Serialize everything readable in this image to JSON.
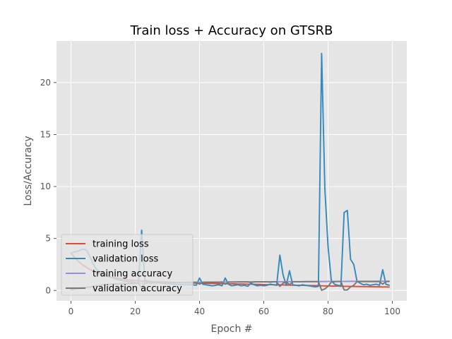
{
  "chart_data": {
    "type": "line",
    "title": "Train loss + Accuracy on GTSRB",
    "xlabel": "Epoch #",
    "ylabel": "Loss/Accuracy",
    "xlim": [
      -4.5,
      104.5
    ],
    "ylim": [
      -1.0,
      24.0
    ],
    "xticks": [
      0,
      20,
      40,
      60,
      80,
      100
    ],
    "yticks": [
      0,
      5,
      10,
      15,
      20
    ],
    "grid": true,
    "legend_position": "lower-left",
    "x": [
      0,
      1,
      2,
      3,
      4,
      5,
      6,
      7,
      8,
      9,
      10,
      11,
      12,
      13,
      14,
      15,
      16,
      17,
      18,
      19,
      20,
      21,
      22,
      23,
      24,
      25,
      26,
      27,
      28,
      29,
      30,
      31,
      32,
      33,
      34,
      35,
      36,
      37,
      38,
      39,
      40,
      41,
      42,
      43,
      44,
      45,
      46,
      47,
      48,
      49,
      50,
      51,
      52,
      53,
      54,
      55,
      56,
      57,
      58,
      59,
      60,
      61,
      62,
      63,
      64,
      65,
      66,
      67,
      68,
      69,
      70,
      71,
      72,
      73,
      74,
      75,
      76,
      77,
      78,
      79,
      80,
      81,
      82,
      83,
      84,
      85,
      86,
      87,
      88,
      89,
      90,
      91,
      92,
      93,
      94,
      95,
      96,
      97,
      98,
      99
    ],
    "series": [
      {
        "name": "training loss",
        "color": "#E24A33",
        "values": [
          3.6,
          3.2,
          2.9,
          2.6,
          2.4,
          2.2,
          2.0,
          1.85,
          1.7,
          1.6,
          1.5,
          1.4,
          1.3,
          1.25,
          1.2,
          1.15,
          1.1,
          1.05,
          1.0,
          0.98,
          0.95,
          0.93,
          0.9,
          0.88,
          0.86,
          0.85,
          0.84,
          0.83,
          0.82,
          0.81,
          0.8,
          0.79,
          0.78,
          0.77,
          0.76,
          0.75,
          0.74,
          0.73,
          0.72,
          0.71,
          0.7,
          0.7,
          0.69,
          0.68,
          0.68,
          0.67,
          0.66,
          0.66,
          0.65,
          0.64,
          0.64,
          0.63,
          0.62,
          0.62,
          0.61,
          0.6,
          0.6,
          0.59,
          0.58,
          0.58,
          0.57,
          0.56,
          0.56,
          0.55,
          0.54,
          0.54,
          0.53,
          0.52,
          0.52,
          0.51,
          0.5,
          0.5,
          0.49,
          0.48,
          0.48,
          0.47,
          0.46,
          0.46,
          0.45,
          0.44,
          0.44,
          0.43,
          0.42,
          0.42,
          0.41,
          0.4,
          0.4,
          0.39,
          0.39,
          0.38,
          0.38,
          0.37,
          0.37,
          0.36,
          0.36,
          0.35,
          0.35,
          0.34,
          0.34,
          0.33
        ]
      },
      {
        "name": "validation loss",
        "color": "#348ABD",
        "values": [
          3.6,
          3.7,
          3.75,
          3.9,
          4.0,
          3.8,
          3.2,
          2.5,
          2.0,
          1.8,
          1.7,
          1.5,
          1.3,
          1.2,
          1.1,
          1.0,
          0.95,
          0.9,
          0.85,
          0.8,
          0.75,
          0.7,
          5.8,
          1.0,
          0.9,
          0.85,
          0.8,
          0.75,
          0.7,
          0.68,
          0.65,
          0.62,
          0.6,
          0.6,
          0.58,
          0.56,
          0.55,
          0.55,
          0.54,
          0.5,
          1.2,
          0.6,
          0.55,
          0.5,
          0.45,
          0.5,
          0.55,
          0.45,
          1.2,
          0.6,
          0.45,
          0.5,
          0.55,
          0.45,
          0.5,
          0.4,
          0.7,
          0.55,
          0.45,
          0.5,
          0.45,
          0.5,
          0.6,
          0.55,
          0.5,
          3.4,
          1.5,
          0.5,
          1.9,
          0.55,
          0.5,
          0.45,
          0.55,
          0.5,
          0.45,
          0.4,
          0.35,
          0.4,
          22.8,
          9.8,
          4.2,
          1.0,
          0.6,
          0.5,
          0.45,
          7.5,
          7.7,
          3.0,
          2.5,
          0.9,
          0.7,
          0.55,
          0.6,
          0.5,
          0.55,
          0.6,
          0.5,
          2.0,
          0.6,
          0.5
        ]
      },
      {
        "name": "training accuracy",
        "color": "#988ED5",
        "values": [
          0.1,
          0.14,
          0.18,
          0.22,
          0.26,
          0.3,
          0.34,
          0.38,
          0.42,
          0.46,
          0.5,
          0.53,
          0.56,
          0.58,
          0.6,
          0.62,
          0.64,
          0.65,
          0.66,
          0.67,
          0.68,
          0.69,
          0.7,
          0.71,
          0.72,
          0.72,
          0.73,
          0.73,
          0.74,
          0.74,
          0.75,
          0.75,
          0.76,
          0.76,
          0.77,
          0.77,
          0.77,
          0.78,
          0.78,
          0.78,
          0.79,
          0.79,
          0.79,
          0.8,
          0.8,
          0.8,
          0.8,
          0.81,
          0.81,
          0.81,
          0.81,
          0.82,
          0.82,
          0.82,
          0.82,
          0.82,
          0.83,
          0.83,
          0.83,
          0.83,
          0.83,
          0.84,
          0.84,
          0.84,
          0.84,
          0.84,
          0.84,
          0.85,
          0.85,
          0.85,
          0.85,
          0.85,
          0.85,
          0.86,
          0.86,
          0.86,
          0.86,
          0.86,
          0.86,
          0.86,
          0.87,
          0.87,
          0.87,
          0.87,
          0.87,
          0.87,
          0.87,
          0.88,
          0.88,
          0.88,
          0.88,
          0.88,
          0.88,
          0.88,
          0.88,
          0.89,
          0.89,
          0.89,
          0.89,
          0.89
        ]
      },
      {
        "name": "validation accuracy",
        "color": "#777777",
        "values": [
          0.05,
          0.1,
          0.15,
          0.2,
          0.25,
          0.3,
          0.35,
          0.4,
          0.45,
          0.5,
          0.55,
          0.58,
          0.6,
          0.62,
          0.64,
          0.65,
          0.66,
          0.67,
          0.68,
          0.69,
          0.7,
          0.7,
          0.25,
          0.72,
          0.73,
          0.73,
          0.74,
          0.74,
          0.75,
          0.75,
          0.76,
          0.76,
          0.77,
          0.77,
          0.77,
          0.78,
          0.78,
          0.78,
          0.79,
          0.79,
          0.6,
          0.79,
          0.8,
          0.8,
          0.8,
          0.8,
          0.8,
          0.81,
          0.6,
          0.81,
          0.81,
          0.81,
          0.82,
          0.82,
          0.82,
          0.82,
          0.78,
          0.82,
          0.83,
          0.83,
          0.83,
          0.83,
          0.8,
          0.83,
          0.83,
          0.4,
          0.7,
          0.84,
          0.55,
          0.84,
          0.84,
          0.84,
          0.84,
          0.85,
          0.85,
          0.85,
          0.85,
          0.85,
          0.02,
          0.15,
          0.4,
          0.8,
          0.85,
          0.86,
          0.86,
          0.05,
          0.05,
          0.35,
          0.5,
          0.85,
          0.86,
          0.86,
          0.86,
          0.86,
          0.86,
          0.86,
          0.86,
          0.6,
          0.86,
          0.87
        ]
      }
    ]
  }
}
